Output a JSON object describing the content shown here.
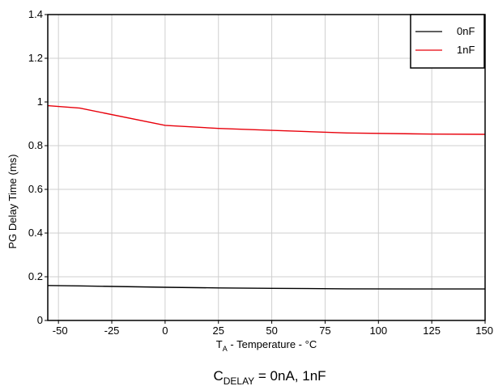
{
  "chart_data": {
    "type": "line",
    "xlabel": {
      "main": "T",
      "sub": "A",
      "rest": " - Temperature - °C"
    },
    "ylabel": "PG Delay Time (ms)",
    "caption": {
      "main": "C",
      "sub": "DELAY",
      "rest": " = 0nA, 1nF"
    },
    "xlim": [
      -55,
      150
    ],
    "ylim": [
      0,
      1.4
    ],
    "x_ticks": [
      -50,
      -25,
      0,
      25,
      50,
      75,
      100,
      125,
      150
    ],
    "y_ticks": [
      0,
      0.2,
      0.4,
      0.6,
      0.8,
      1,
      1.2,
      1.4
    ],
    "grid": true,
    "legend_position": "top-right",
    "series": [
      {
        "name": "0nF",
        "color": "#000000",
        "points": [
          [
            -55,
            0.16
          ],
          [
            -40,
            0.158
          ],
          [
            0,
            0.152
          ],
          [
            25,
            0.149
          ],
          [
            50,
            0.147
          ],
          [
            85,
            0.145
          ],
          [
            125,
            0.144
          ],
          [
            150,
            0.144
          ]
        ]
      },
      {
        "name": "1nF",
        "color": "#e8000b",
        "points": [
          [
            -55,
            0.983
          ],
          [
            -40,
            0.972
          ],
          [
            0,
            0.893
          ],
          [
            25,
            0.879
          ],
          [
            50,
            0.87
          ],
          [
            85,
            0.858
          ],
          [
            125,
            0.853
          ],
          [
            150,
            0.852
          ]
        ]
      }
    ]
  }
}
